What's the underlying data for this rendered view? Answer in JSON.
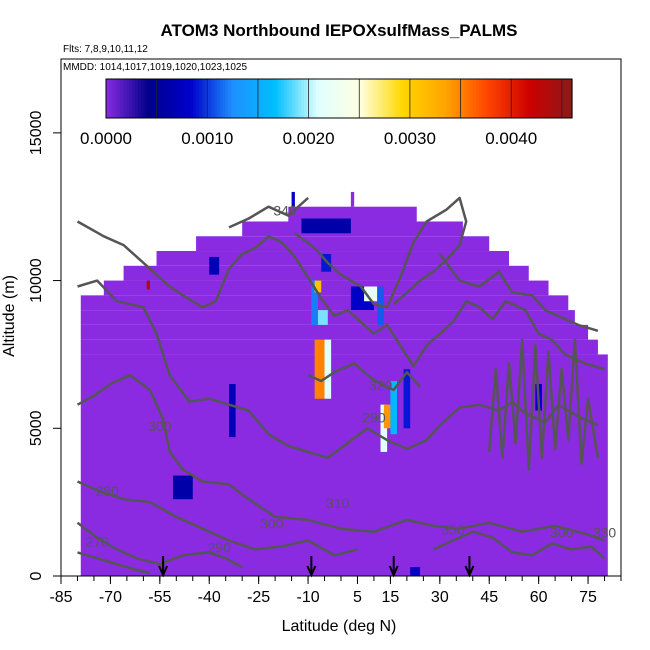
{
  "chart_data": {
    "type": "heatmap",
    "title": "ATOM3 Northbound IEPOXsulfMass_PALMS",
    "flights_note": "Flts: 7,8,9,10,11,12",
    "dates_note": "MMDD: 1014,1017,1019,1020,1023,1025",
    "xlabel": "Latitude (deg N)",
    "ylabel": "Altitude (m)",
    "xlim": [
      -85,
      85
    ],
    "ylim": [
      0,
      17500
    ],
    "x_ticks": [
      "-85",
      "-70",
      "-55",
      "-40",
      "-25",
      "-10",
      "5",
      "15",
      "30",
      "45",
      "60",
      "75"
    ],
    "x_tick_values": [
      -85,
      -70,
      -55,
      -40,
      -25,
      -10,
      5,
      15,
      30,
      45,
      60,
      75
    ],
    "y_ticks": [
      "0",
      "5000",
      "10000",
      "15000"
    ],
    "y_tick_values": [
      0,
      5000,
      10000,
      15000
    ],
    "colorbar": {
      "range": [
        0,
        0.0046
      ],
      "tick_labels": [
        "0.0000",
        "0.0010",
        "0.0020",
        "0.0030",
        "0.0040"
      ],
      "tick_values": [
        0,
        0.001,
        0.002,
        0.003,
        0.004
      ],
      "colors": [
        "#8a2be2",
        "#00008b",
        "#0000cd",
        "#1e90ff",
        "#00bfff",
        "#e0ffff",
        "#ffffe0",
        "#ffd700",
        "#ffa500",
        "#ff4500",
        "#cd0000",
        "#8b1a1a"
      ]
    },
    "background_value": 0.0,
    "background_color": "#8a2be2",
    "contour_color": "#555555",
    "contour_labels": [
      "340",
      "300",
      "280",
      "270",
      "290",
      "300",
      "310",
      "350",
      "300",
      "290",
      "320",
      "330"
    ],
    "flight_markers_lat": [
      -54,
      -9,
      16,
      39
    ],
    "domain_rows": [
      {
        "alt": [
          12500,
          13000
        ],
        "lat": [
          3,
          3
        ]
      },
      {
        "alt": [
          12000,
          12500
        ],
        "lat": [
          -16,
          22
        ]
      },
      {
        "alt": [
          11500,
          12000
        ],
        "lat": [
          -30,
          36
        ]
      },
      {
        "alt": [
          11000,
          11500
        ],
        "lat": [
          -44,
          44
        ]
      },
      {
        "alt": [
          10500,
          11000
        ],
        "lat": [
          -56,
          50
        ]
      },
      {
        "alt": [
          10000,
          10500
        ],
        "lat": [
          -66,
          56
        ]
      },
      {
        "alt": [
          9500,
          10000
        ],
        "lat": [
          -72,
          62
        ]
      },
      {
        "alt": [
          9000,
          9500
        ],
        "lat": [
          -79,
          68
        ]
      },
      {
        "alt": [
          8500,
          9000
        ],
        "lat": [
          -79,
          70
        ]
      },
      {
        "alt": [
          8000,
          8500
        ],
        "lat": [
          -79,
          74
        ]
      },
      {
        "alt": [
          7500,
          8000
        ],
        "lat": [
          -79,
          77
        ]
      },
      {
        "alt": [
          0,
          7500
        ],
        "lat": [
          -79,
          80
        ]
      }
    ],
    "hotspots": [
      {
        "lat": [
          -34,
          -32
        ],
        "alt": [
          4700,
          6500
        ],
        "value": 0.0007
      },
      {
        "lat": [
          -51,
          -45
        ],
        "alt": [
          2600,
          3400
        ],
        "value": 0.0006
      },
      {
        "lat": [
          -40,
          -37
        ],
        "alt": [
          10200,
          10800
        ],
        "value": 0.0007
      },
      {
        "lat": [
          -15,
          -14
        ],
        "alt": [
          12500,
          13000
        ],
        "value": 0.0008
      },
      {
        "lat": [
          -12,
          3
        ],
        "alt": [
          11600,
          12100
        ],
        "value": 0.0006
      },
      {
        "lat": [
          -9,
          -7
        ],
        "alt": [
          8500,
          10000
        ],
        "value": 0.0012
      },
      {
        "lat": [
          -8,
          -6
        ],
        "alt": [
          9600,
          10000
        ],
        "value": 0.0031
      },
      {
        "lat": [
          -7,
          -4
        ],
        "alt": [
          8500,
          9000
        ],
        "value": 0.0019
      },
      {
        "lat": [
          -6,
          -3
        ],
        "alt": [
          10300,
          10900
        ],
        "value": 0.0009
      },
      {
        "lat": [
          -8,
          -5
        ],
        "alt": [
          6000,
          8000
        ],
        "value": 0.0035
      },
      {
        "lat": [
          -5,
          -3
        ],
        "alt": [
          6000,
          8000
        ],
        "value": 0.0021
      },
      {
        "lat": [
          3,
          10
        ],
        "alt": [
          9000,
          9800
        ],
        "value": 0.0008
      },
      {
        "lat": [
          7,
          11
        ],
        "alt": [
          9300,
          9800
        ],
        "value": 0.0022
      },
      {
        "lat": [
          11,
          13
        ],
        "alt": [
          8500,
          9800
        ],
        "value": 0.0011
      },
      {
        "lat": [
          12,
          14
        ],
        "alt": [
          4200,
          5800
        ],
        "value": 0.0021
      },
      {
        "lat": [
          13,
          15
        ],
        "alt": [
          5000,
          5800
        ],
        "value": 0.0034
      },
      {
        "lat": [
          15,
          17
        ],
        "alt": [
          4800,
          6600
        ],
        "value": 0.0016
      },
      {
        "lat": [
          19,
          21
        ],
        "alt": [
          5000,
          7000
        ],
        "value": 0.0009
      },
      {
        "lat": [
          21,
          24
        ],
        "alt": [
          0,
          300
        ],
        "value": 0.0008
      },
      {
        "lat": [
          59,
          61
        ],
        "alt": [
          5600,
          6500
        ],
        "value": 0.0008
      },
      {
        "lat": [
          -59,
          -58
        ],
        "alt": [
          9700,
          10000
        ],
        "value": 0.0044
      }
    ],
    "contours": [
      [
        [
          -80,
          3200
        ],
        [
          -74,
          2900
        ],
        [
          -66,
          2600
        ],
        [
          -58,
          2500
        ],
        [
          -50,
          2000
        ],
        [
          -42,
          1600
        ],
        [
          -34,
          1200
        ],
        [
          -26,
          900
        ],
        [
          -18,
          1000
        ],
        [
          -10,
          1200
        ],
        [
          -2,
          700
        ],
        [
          5,
          900
        ]
      ],
      [
        [
          -80,
          1800
        ],
        [
          -74,
          1300
        ],
        [
          -68,
          900
        ],
        [
          -62,
          600
        ],
        [
          -55,
          400
        ],
        [
          -48,
          700
        ],
        [
          -40,
          800
        ],
        [
          -35,
          600
        ],
        [
          -30,
          300
        ]
      ],
      [
        [
          -80,
          5800
        ],
        [
          -75,
          6100
        ],
        [
          -70,
          6500
        ],
        [
          -64,
          6800
        ],
        [
          -58,
          6300
        ],
        [
          -54,
          5300
        ],
        [
          -52,
          4200
        ],
        [
          -48,
          3600
        ],
        [
          -42,
          3200
        ],
        [
          -34,
          3100
        ],
        [
          -28,
          2600
        ],
        [
          -20,
          2000
        ],
        [
          -10,
          1900
        ],
        [
          0,
          1600
        ],
        [
          10,
          1500
        ],
        [
          20,
          1900
        ],
        [
          28,
          1700
        ],
        [
          36,
          1600
        ],
        [
          45,
          1800
        ],
        [
          55,
          1500
        ],
        [
          65,
          1700
        ],
        [
          75,
          1400
        ],
        [
          80,
          1200
        ]
      ],
      [
        [
          -80,
          9800
        ],
        [
          -74,
          10000
        ],
        [
          -68,
          9300
        ],
        [
          -60,
          9100
        ],
        [
          -56,
          8200
        ],
        [
          -52,
          6800
        ],
        [
          -46,
          5900
        ],
        [
          -40,
          6000
        ],
        [
          -34,
          5800
        ],
        [
          -28,
          5600
        ],
        [
          -22,
          4800
        ],
        [
          -16,
          4400
        ],
        [
          -10,
          4200
        ],
        [
          -4,
          4000
        ],
        [
          2,
          4500
        ],
        [
          8,
          5000
        ],
        [
          14,
          4600
        ],
        [
          20,
          4300
        ],
        [
          26,
          4600
        ],
        [
          30,
          5100
        ],
        [
          36,
          5700
        ],
        [
          42,
          5800
        ],
        [
          48,
          5600
        ],
        [
          52,
          5900
        ],
        [
          56,
          5500
        ],
        [
          62,
          5200
        ],
        [
          66,
          5800
        ],
        [
          72,
          5400
        ],
        [
          78,
          5100
        ]
      ],
      [
        [
          -80,
          12000
        ],
        [
          -72,
          11500
        ],
        [
          -66,
          11200
        ],
        [
          -60,
          10600
        ],
        [
          -56,
          10200
        ],
        [
          -52,
          9800
        ],
        [
          -48,
          9500
        ],
        [
          -42,
          9100
        ],
        [
          -38,
          9300
        ],
        [
          -34,
          10400
        ],
        [
          -30,
          10900
        ],
        [
          -26,
          11100
        ],
        [
          -22,
          11500
        ],
        [
          -18,
          11300
        ],
        [
          -14,
          10800
        ],
        [
          -10,
          10100
        ],
        [
          -6,
          9400
        ],
        [
          -2,
          8800
        ],
        [
          2,
          9000
        ],
        [
          6,
          8600
        ],
        [
          10,
          8200
        ],
        [
          14,
          8500
        ],
        [
          18,
          7800
        ],
        [
          22,
          7100
        ],
        [
          26,
          7800
        ],
        [
          30,
          8200
        ],
        [
          34,
          8600
        ],
        [
          38,
          9300
        ],
        [
          42,
          9100
        ],
        [
          46,
          8700
        ],
        [
          50,
          9300
        ],
        [
          56,
          9000
        ],
        [
          60,
          8200
        ],
        [
          64,
          8000
        ],
        [
          68,
          7500
        ],
        [
          74,
          7200
        ],
        [
          80,
          7000
        ]
      ],
      [
        [
          -14,
          11600
        ],
        [
          -8,
          11100
        ],
        [
          -4,
          10600
        ],
        [
          0,
          10200
        ],
        [
          6,
          9800
        ],
        [
          10,
          9200
        ],
        [
          14,
          9100
        ],
        [
          18,
          10100
        ],
        [
          22,
          11300
        ],
        [
          26,
          12000
        ],
        [
          32,
          12400
        ],
        [
          36,
          12800
        ],
        [
          38,
          12000
        ],
        [
          36,
          11200
        ],
        [
          32,
          10700
        ],
        [
          28,
          10300
        ],
        [
          24,
          10000
        ],
        [
          20,
          9600
        ],
        [
          16,
          9200
        ]
      ],
      [
        [
          30,
          10900
        ],
        [
          36,
          10000
        ],
        [
          42,
          9800
        ],
        [
          48,
          10300
        ],
        [
          52,
          9600
        ],
        [
          58,
          9500
        ],
        [
          62,
          9000
        ],
        [
          66,
          8800
        ],
        [
          72,
          8500
        ],
        [
          78,
          8300
        ]
      ],
      [
        [
          -10,
          12800
        ],
        [
          -16,
          12200
        ],
        [
          -22,
          12500
        ],
        [
          -28,
          12100
        ],
        [
          -34,
          11800
        ]
      ],
      [
        [
          45,
          4200
        ],
        [
          47,
          7000
        ],
        [
          49,
          4000
        ],
        [
          51,
          7200
        ],
        [
          53,
          4500
        ],
        [
          55,
          8000
        ],
        [
          57,
          3600
        ],
        [
          59,
          7800
        ],
        [
          61,
          4000
        ],
        [
          63,
          7600
        ],
        [
          65,
          4300
        ],
        [
          67,
          7000
        ],
        [
          69,
          4600
        ],
        [
          71,
          8000
        ],
        [
          73,
          3800
        ],
        [
          75,
          6000
        ],
        [
          78,
          4000
        ]
      ],
      [
        [
          -80,
          800
        ],
        [
          -74,
          600
        ],
        [
          -68,
          400
        ],
        [
          -62,
          200
        ],
        [
          -58,
          100
        ]
      ],
      [
        [
          28,
          900
        ],
        [
          34,
          1200
        ],
        [
          40,
          1500
        ],
        [
          46,
          1300
        ],
        [
          52,
          800
        ],
        [
          58,
          700
        ],
        [
          64,
          1100
        ],
        [
          70,
          900
        ],
        [
          76,
          1000
        ],
        [
          80,
          600
        ]
      ],
      [
        [
          -10,
          6800
        ],
        [
          -6,
          6600
        ],
        [
          -2,
          6900
        ],
        [
          4,
          7200
        ],
        [
          8,
          6800
        ],
        [
          12,
          6500
        ],
        [
          16,
          6300
        ],
        [
          20,
          6900
        ],
        [
          24,
          6400
        ]
      ]
    ],
    "contour_label_positions": [
      [
        -17,
        12200
      ],
      [
        -55,
        4900
      ],
      [
        -71,
        2700
      ],
      [
        -74,
        1000
      ],
      [
        -37,
        800
      ],
      [
        -21,
        1600
      ],
      [
        -1,
        2300
      ],
      [
        34,
        1400
      ],
      [
        67,
        1300
      ],
      [
        10,
        5200
      ],
      [
        12,
        6300
      ],
      [
        80,
        1300
      ]
    ]
  }
}
